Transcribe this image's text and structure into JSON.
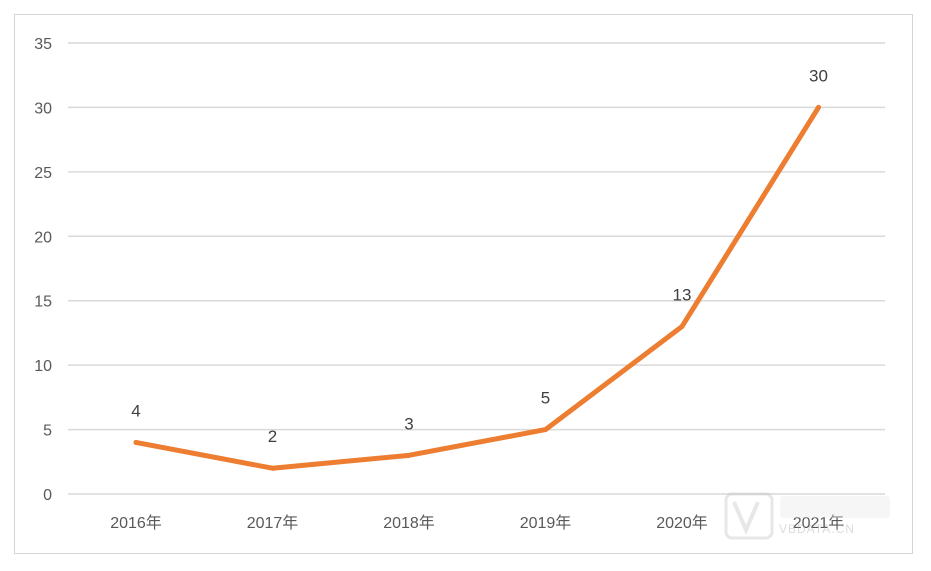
{
  "chart_data": {
    "type": "line",
    "categories": [
      "2016年",
      "2017年",
      "2018年",
      "2019年",
      "2020年",
      "2021年"
    ],
    "values": [
      4,
      2,
      3,
      5,
      13,
      30
    ],
    "data_labels": [
      "4",
      "2",
      "3",
      "5",
      "13",
      "30"
    ],
    "ylim": [
      0,
      35
    ],
    "yticks": [
      0,
      5,
      10,
      15,
      20,
      25,
      30,
      35
    ],
    "grid": true,
    "legend": "none",
    "title": "",
    "xlabel": "",
    "ylabel": "",
    "colors": {
      "line": "#ED7D31",
      "grid": "#D9D9D9"
    }
  },
  "watermark": {
    "text": "VBDATA.CN"
  }
}
